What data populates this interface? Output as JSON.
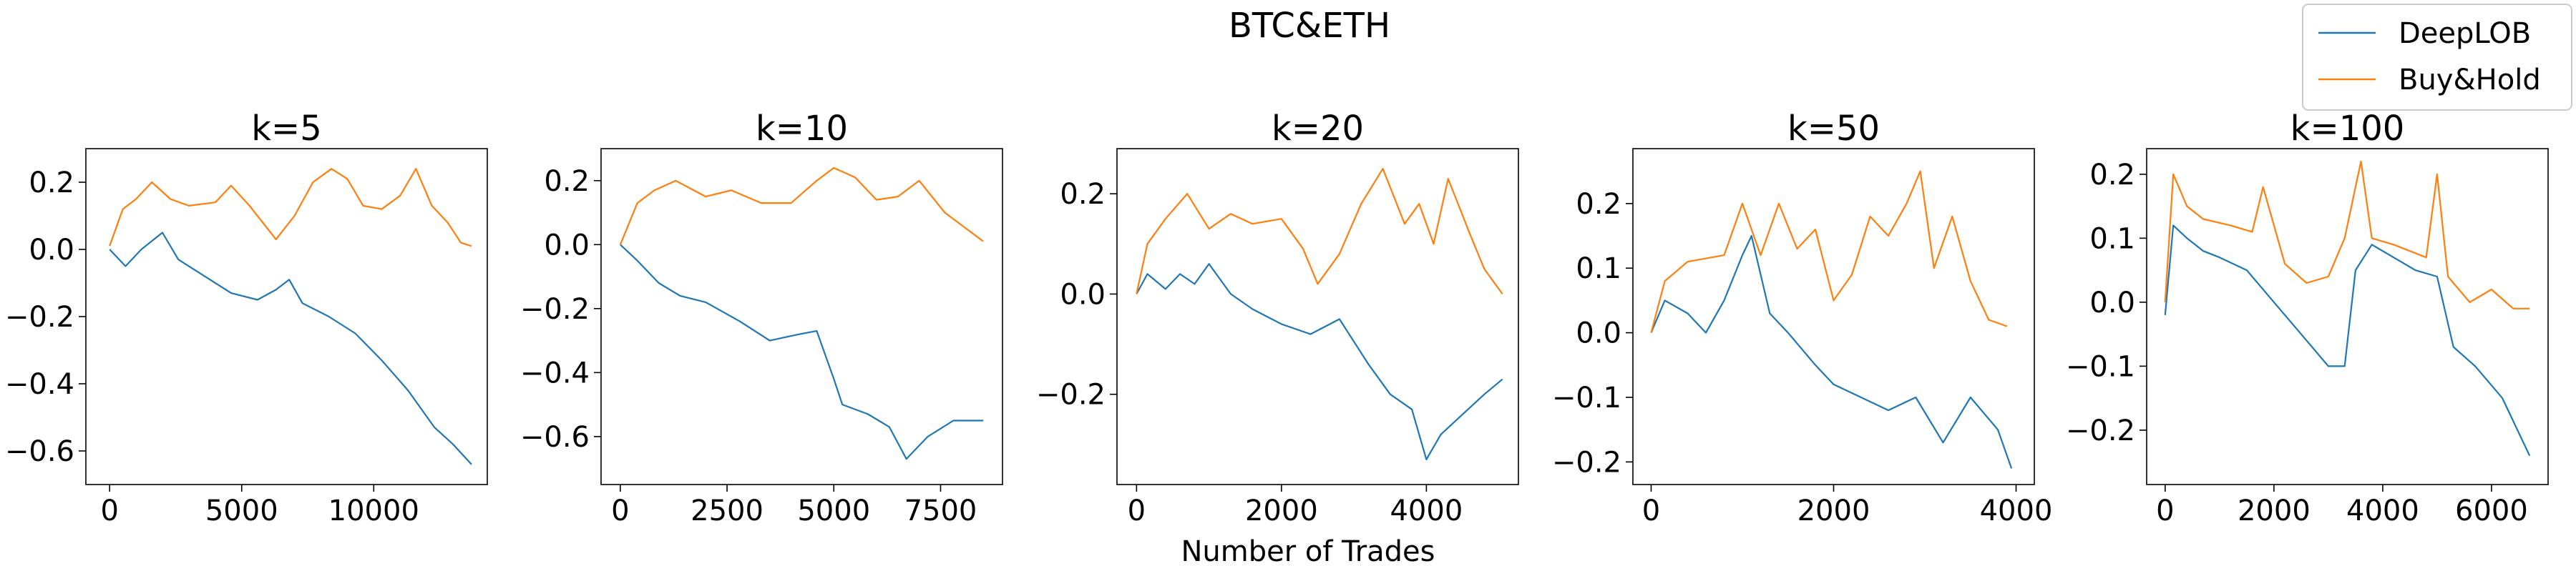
{
  "figure": {
    "title": "BTC&ETH",
    "xlabel": "Number of Trades"
  },
  "legend": {
    "placement": "top-right",
    "entries": [
      {
        "name": "DeepLOB",
        "color": "#1f77b4"
      },
      {
        "name": "Buy&Hold",
        "color": "#ff7f0e"
      }
    ]
  },
  "chart_data": [
    {
      "type": "line",
      "title": "k=5",
      "xlim": [
        -900,
        14300
      ],
      "ylim": [
        -0.7,
        0.3
      ],
      "xticks": [
        0,
        5000,
        10000
      ],
      "xtick_labels": [
        "0",
        "5000",
        "10000"
      ],
      "yticks": [
        -0.6,
        -0.4,
        -0.2,
        0.0,
        0.2
      ],
      "ytick_labels": [
        "−0.6",
        "−0.4",
        "−0.2",
        "0.0",
        "0.2"
      ],
      "series": [
        {
          "name": "DeepLOB",
          "color": "#1f77b4",
          "x": [
            0,
            600,
            1200,
            2000,
            2600,
            3600,
            4600,
            5600,
            6300,
            6800,
            7300,
            8300,
            9300,
            10300,
            11300,
            12300,
            13000,
            13700
          ],
          "y": [
            0.0,
            -0.05,
            0.0,
            0.05,
            -0.03,
            -0.08,
            -0.13,
            -0.15,
            -0.12,
            -0.09,
            -0.16,
            -0.2,
            -0.25,
            -0.33,
            -0.42,
            -0.53,
            -0.58,
            -0.64
          ]
        },
        {
          "name": "Buy&Hold",
          "color": "#ff7f0e",
          "x": [
            0,
            500,
            1000,
            1600,
            2300,
            3000,
            4000,
            4600,
            5300,
            6300,
            7000,
            7700,
            8400,
            9000,
            9600,
            10300,
            11000,
            11600,
            12200,
            12800,
            13300,
            13700
          ],
          "y": [
            0.01,
            0.12,
            0.15,
            0.2,
            0.15,
            0.13,
            0.14,
            0.19,
            0.13,
            0.03,
            0.1,
            0.2,
            0.24,
            0.21,
            0.13,
            0.12,
            0.16,
            0.24,
            0.13,
            0.08,
            0.02,
            0.01
          ]
        }
      ]
    },
    {
      "type": "line",
      "title": "k=10",
      "xlim": [
        -450,
        8950
      ],
      "ylim": [
        -0.75,
        0.3
      ],
      "xticks": [
        0,
        2500,
        5000,
        7500
      ],
      "xtick_labels": [
        "0",
        "2500",
        "5000",
        "7500"
      ],
      "yticks": [
        -0.6,
        -0.4,
        -0.2,
        0.0,
        0.2
      ],
      "ytick_labels": [
        "−0.6",
        "−0.4",
        "−0.2",
        "0.0",
        "0.2"
      ],
      "series": [
        {
          "name": "DeepLOB",
          "color": "#1f77b4",
          "x": [
            0,
            400,
            900,
            1400,
            2000,
            2800,
            3500,
            4200,
            4600,
            5000,
            5200,
            5800,
            6300,
            6700,
            7200,
            7800,
            8500
          ],
          "y": [
            0.0,
            -0.05,
            -0.12,
            -0.16,
            -0.18,
            -0.24,
            -0.3,
            -0.28,
            -0.27,
            -0.42,
            -0.5,
            -0.53,
            -0.57,
            -0.67,
            -0.6,
            -0.55,
            -0.55
          ]
        },
        {
          "name": "Buy&Hold",
          "color": "#ff7f0e",
          "x": [
            0,
            400,
            800,
            1300,
            2000,
            2600,
            3300,
            4000,
            4600,
            5000,
            5500,
            6000,
            6500,
            7000,
            7600,
            8100,
            8500
          ],
          "y": [
            0.0,
            0.13,
            0.17,
            0.2,
            0.15,
            0.17,
            0.13,
            0.13,
            0.2,
            0.24,
            0.21,
            0.14,
            0.15,
            0.2,
            0.1,
            0.05,
            0.01
          ]
        }
      ]
    },
    {
      "type": "line",
      "title": "k=20",
      "xlim": [
        -270,
        5270
      ],
      "ylim": [
        -0.38,
        0.29
      ],
      "xticks": [
        0,
        2000,
        4000
      ],
      "xtick_labels": [
        "0",
        "2000",
        "4000"
      ],
      "yticks": [
        -0.2,
        0.0,
        0.2
      ],
      "ytick_labels": [
        "−0.2",
        "0.0",
        "0.2"
      ],
      "series": [
        {
          "name": "DeepLOB",
          "color": "#1f77b4",
          "x": [
            0,
            150,
            400,
            600,
            800,
            1000,
            1300,
            1600,
            2000,
            2400,
            2800,
            3200,
            3500,
            3800,
            4000,
            4200,
            4500,
            4800,
            5050
          ],
          "y": [
            0.0,
            0.04,
            0.01,
            0.04,
            0.02,
            0.06,
            0.0,
            -0.03,
            -0.06,
            -0.08,
            -0.05,
            -0.14,
            -0.2,
            -0.23,
            -0.33,
            -0.28,
            -0.24,
            -0.2,
            -0.17
          ]
        },
        {
          "name": "Buy&Hold",
          "color": "#ff7f0e",
          "x": [
            0,
            150,
            400,
            700,
            1000,
            1300,
            1600,
            2000,
            2300,
            2500,
            2800,
            3100,
            3400,
            3700,
            3900,
            4100,
            4300,
            4600,
            4800,
            5050
          ],
          "y": [
            0.0,
            0.1,
            0.15,
            0.2,
            0.13,
            0.16,
            0.14,
            0.15,
            0.09,
            0.02,
            0.08,
            0.18,
            0.25,
            0.14,
            0.18,
            0.1,
            0.23,
            0.12,
            0.05,
            0.0
          ]
        }
      ]
    },
    {
      "type": "line",
      "title": "k=50",
      "xlim": [
        -200,
        4200
      ],
      "ylim": [
        -0.235,
        0.285
      ],
      "xticks": [
        0,
        2000,
        4000
      ],
      "xtick_labels": [
        "0",
        "2000",
        "4000"
      ],
      "yticks": [
        -0.2,
        -0.1,
        0.0,
        0.1,
        0.2
      ],
      "ytick_labels": [
        "−0.2",
        "−0.1",
        "0.0",
        "0.1",
        "0.2"
      ],
      "series": [
        {
          "name": "DeepLOB",
          "color": "#1f77b4",
          "x": [
            0,
            150,
            400,
            600,
            800,
            1000,
            1100,
            1300,
            1500,
            1800,
            2000,
            2300,
            2600,
            2900,
            3200,
            3500,
            3800,
            3950
          ],
          "y": [
            0.0,
            0.05,
            0.03,
            0.0,
            0.05,
            0.12,
            0.15,
            0.03,
            0.0,
            -0.05,
            -0.08,
            -0.1,
            -0.12,
            -0.1,
            -0.17,
            -0.1,
            -0.15,
            -0.21
          ]
        },
        {
          "name": "Buy&Hold",
          "color": "#ff7f0e",
          "x": [
            0,
            150,
            400,
            800,
            1000,
            1200,
            1400,
            1600,
            1800,
            2000,
            2200,
            2400,
            2600,
            2800,
            2950,
            3100,
            3300,
            3500,
            3700,
            3900
          ],
          "y": [
            0.0,
            0.08,
            0.11,
            0.12,
            0.2,
            0.12,
            0.2,
            0.13,
            0.16,
            0.05,
            0.09,
            0.18,
            0.15,
            0.2,
            0.25,
            0.1,
            0.18,
            0.08,
            0.02,
            0.01
          ]
        }
      ]
    },
    {
      "type": "line",
      "title": "k=100",
      "xlim": [
        -340,
        7040
      ],
      "ylim": [
        -0.285,
        0.24
      ],
      "xticks": [
        0,
        2000,
        4000,
        6000
      ],
      "xtick_labels": [
        "0",
        "2000",
        "4000",
        "6000"
      ],
      "yticks": [
        -0.2,
        -0.1,
        0.0,
        0.1,
        0.2
      ],
      "ytick_labels": [
        "−0.2",
        "−0.1",
        "0.0",
        "0.1",
        "0.2"
      ],
      "series": [
        {
          "name": "DeepLOB",
          "color": "#1f77b4",
          "x": [
            0,
            150,
            400,
            700,
            1000,
            1500,
            2000,
            2500,
            3000,
            3300,
            3500,
            3800,
            4200,
            4600,
            5000,
            5300,
            5700,
            6200,
            6700
          ],
          "y": [
            -0.02,
            0.12,
            0.1,
            0.08,
            0.07,
            0.05,
            0.0,
            -0.05,
            -0.1,
            -0.1,
            0.05,
            0.09,
            0.07,
            0.05,
            0.04,
            -0.07,
            -0.1,
            -0.15,
            -0.24
          ]
        },
        {
          "name": "Buy&Hold",
          "color": "#ff7f0e",
          "x": [
            0,
            150,
            400,
            700,
            1200,
            1600,
            1800,
            2200,
            2600,
            3000,
            3300,
            3600,
            3800,
            4200,
            4800,
            5000,
            5200,
            5600,
            6000,
            6400,
            6700
          ],
          "y": [
            0.0,
            0.2,
            0.15,
            0.13,
            0.12,
            0.11,
            0.18,
            0.06,
            0.03,
            0.04,
            0.1,
            0.22,
            0.1,
            0.09,
            0.07,
            0.2,
            0.04,
            0.0,
            0.02,
            -0.01,
            -0.01
          ]
        }
      ]
    }
  ]
}
